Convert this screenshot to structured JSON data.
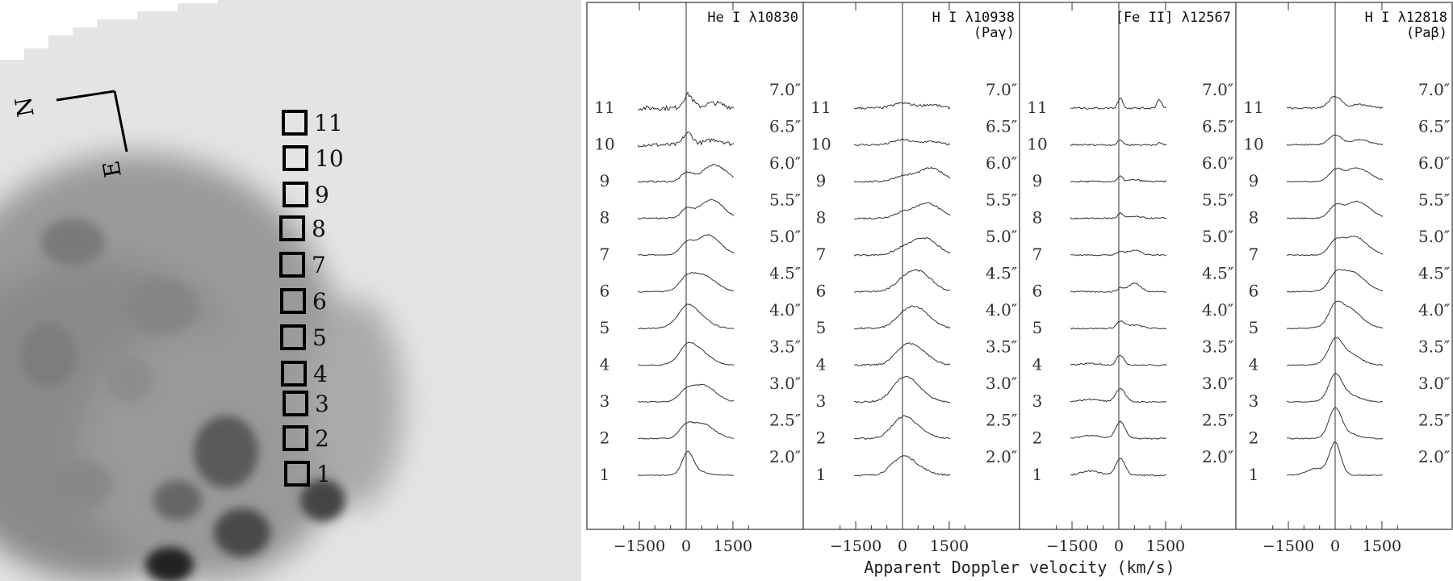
{
  "image_panel": {
    "compass": {
      "north": "N",
      "east": "E"
    },
    "apertures": [
      "1",
      "2",
      "3",
      "4",
      "5",
      "6",
      "7",
      "8",
      "9",
      "10",
      "11"
    ]
  },
  "chart_data": [
    {
      "type": "line",
      "title": "He I λ10830",
      "subtitle": "",
      "xlabel": "Apparent Doppler velocity (km/s)",
      "xlim": [
        -2200,
        2200
      ],
      "xticks": [
        -1500,
        0,
        1500
      ],
      "xticklabels": [
        "−1500",
        "0",
        "1500"
      ],
      "positions": [
        "1",
        "2",
        "3",
        "4",
        "5",
        "6",
        "7",
        "8",
        "9",
        "10",
        "11"
      ],
      "offsets": [
        "2.0″",
        "2.5″",
        "3.0″",
        "3.5″",
        "4.0″",
        "4.5″",
        "5.0″",
        "5.5″",
        "6.0″",
        "6.5″",
        "7.0″"
      ],
      "components": [
        {
          "v": [
            50,
            -20,
            -20,
            0,
            0,
            0,
            10,
            20,
            20,
            60,
            60
          ],
          "h": [
            1.3,
            0.55,
            0.5,
            0.5,
            0.5,
            0.5,
            0.6,
            0.5,
            0.5,
            0.7,
            0.8
          ],
          "w": [
            180,
            200,
            220,
            220,
            230,
            230,
            200,
            180,
            180,
            150,
            150
          ]
        },
        {
          "v": [
            400,
            500,
            550,
            300,
            200,
            500,
            700,
            800,
            900,
            900,
            900
          ],
          "h": [
            0.2,
            0.9,
            1.0,
            1.0,
            1.0,
            1.0,
            1.2,
            1.1,
            1.0,
            0.3,
            0.3
          ],
          "w": [
            300,
            380,
            380,
            400,
            420,
            420,
            380,
            380,
            380,
            300,
            300
          ]
        }
      ],
      "noise": [
        0.03,
        0.03,
        0.03,
        0.03,
        0.03,
        0.03,
        0.03,
        0.04,
        0.05,
        0.12,
        0.14
      ]
    },
    {
      "type": "line",
      "title": "H I λ10938",
      "subtitle": "(Paγ)",
      "xlabel": "Apparent Doppler velocity (km/s)",
      "xlim": [
        -2200,
        2200
      ],
      "xticks": [
        -1500,
        0,
        1500
      ],
      "xticklabels": [
        "−1500",
        "0",
        "1500"
      ],
      "positions": [
        "1",
        "2",
        "3",
        "4",
        "5",
        "6",
        "7",
        "8",
        "9",
        "10",
        "11"
      ],
      "offsets": [
        "2.0″",
        "2.5″",
        "3.0″",
        "3.5″",
        "4.0″",
        "4.5″",
        "5.0″",
        "5.5″",
        "6.0″",
        "6.5″",
        "7.0″"
      ],
      "components": [
        {
          "v": [
            0,
            0,
            0,
            0,
            0,
            0,
            0,
            0,
            0,
            0,
            0
          ],
          "h": [
            1.0,
            1.1,
            1.1,
            0.5,
            0.3,
            0.3,
            0.3,
            0.3,
            0.3,
            0.3,
            0.3
          ],
          "w": [
            350,
            350,
            350,
            300,
            300,
            300,
            300,
            300,
            300,
            300,
            300
          ]
        },
        {
          "v": [
            500,
            450,
            400,
            400,
            450,
            500,
            700,
            800,
            900,
            900,
            900
          ],
          "h": [
            0.3,
            0.4,
            0.6,
            1.0,
            1.2,
            1.2,
            1.0,
            0.9,
            0.8,
            0.2,
            0.2
          ],
          "w": [
            400,
            400,
            400,
            420,
            420,
            420,
            400,
            400,
            400,
            300,
            300
          ]
        }
      ],
      "noise": [
        0.05,
        0.05,
        0.05,
        0.05,
        0.05,
        0.05,
        0.05,
        0.05,
        0.05,
        0.06,
        0.07
      ]
    },
    {
      "type": "line",
      "title": "[Fe II] λ12567",
      "subtitle": "",
      "xlabel": "Apparent Doppler velocity (km/s)",
      "xlim": [
        -2200,
        2200
      ],
      "xticks": [
        -1500,
        0,
        1500
      ],
      "xticklabels": [
        "−1500",
        "0",
        "1500"
      ],
      "positions": [
        "1",
        "2",
        "3",
        "4",
        "5",
        "6",
        "7",
        "8",
        "9",
        "10",
        "11"
      ],
      "offsets": [
        "2.0″",
        "2.5″",
        "3.0″",
        "3.5″",
        "4.0″",
        "4.5″",
        "5.0″",
        "5.5″",
        "6.0″",
        "6.5″",
        "7.0″"
      ],
      "components": [
        {
          "v": [
            50,
            50,
            50,
            50,
            50,
            50,
            50,
            50,
            50,
            50,
            50
          ],
          "h": [
            1.0,
            1.0,
            0.8,
            0.6,
            0.4,
            0.2,
            0.2,
            0.3,
            0.3,
            0.3,
            0.6
          ],
          "w": [
            150,
            150,
            150,
            120,
            120,
            100,
            100,
            80,
            80,
            80,
            80
          ]
        },
        {
          "v": [
            -900,
            -900,
            -900,
            -900,
            500,
            500,
            500,
            500,
            500,
            1300,
            1300
          ],
          "h": [
            0.25,
            0.2,
            0.15,
            0.1,
            0.2,
            0.5,
            0.3,
            0.1,
            0.1,
            0.1,
            0.5
          ],
          "w": [
            300,
            300,
            300,
            300,
            250,
            200,
            200,
            200,
            200,
            80,
            80
          ]
        }
      ],
      "noise": [
        0.04,
        0.04,
        0.04,
        0.04,
        0.04,
        0.04,
        0.04,
        0.04,
        0.05,
        0.05,
        0.06
      ]
    },
    {
      "type": "line",
      "title": "H I λ12818",
      "subtitle": "(Paβ)",
      "xlabel": "Apparent Doppler velocity (km/s)",
      "xlim": [
        -2200,
        2200
      ],
      "xticks": [
        -1500,
        0,
        1500
      ],
      "xticklabels": [
        "−1500",
        "0",
        "1500"
      ],
      "positions": [
        "1",
        "2",
        "3",
        "4",
        "5",
        "6",
        "7",
        "8",
        "9",
        "10",
        "11"
      ],
      "offsets": [
        "2.0″",
        "2.5″",
        "3.0″",
        "3.5″",
        "4.0″",
        "4.5″",
        "5.0″",
        "5.5″",
        "6.0″",
        "6.5″",
        "7.0″"
      ],
      "components": [
        {
          "v": [
            0,
            0,
            0,
            0,
            0,
            0,
            0,
            0,
            0,
            0,
            0
          ],
          "h": [
            1.9,
            1.6,
            1.3,
            1.0,
            0.8,
            0.6,
            0.6,
            0.6,
            0.6,
            0.6,
            0.7
          ],
          "w": [
            180,
            200,
            200,
            200,
            200,
            200,
            200,
            200,
            200,
            200,
            200
          ]
        },
        {
          "v": [
            -600,
            300,
            300,
            300,
            400,
            500,
            600,
            700,
            700,
            800,
            800
          ],
          "h": [
            0.4,
            0.3,
            0.5,
            0.8,
            1.2,
            1.2,
            1.1,
            1.0,
            0.8,
            0.3,
            0.2
          ],
          "w": [
            300,
            400,
            400,
            420,
            420,
            420,
            400,
            400,
            400,
            300,
            300
          ]
        }
      ],
      "noise": [
        0.03,
        0.03,
        0.03,
        0.03,
        0.03,
        0.03,
        0.03,
        0.03,
        0.03,
        0.04,
        0.05
      ]
    }
  ]
}
